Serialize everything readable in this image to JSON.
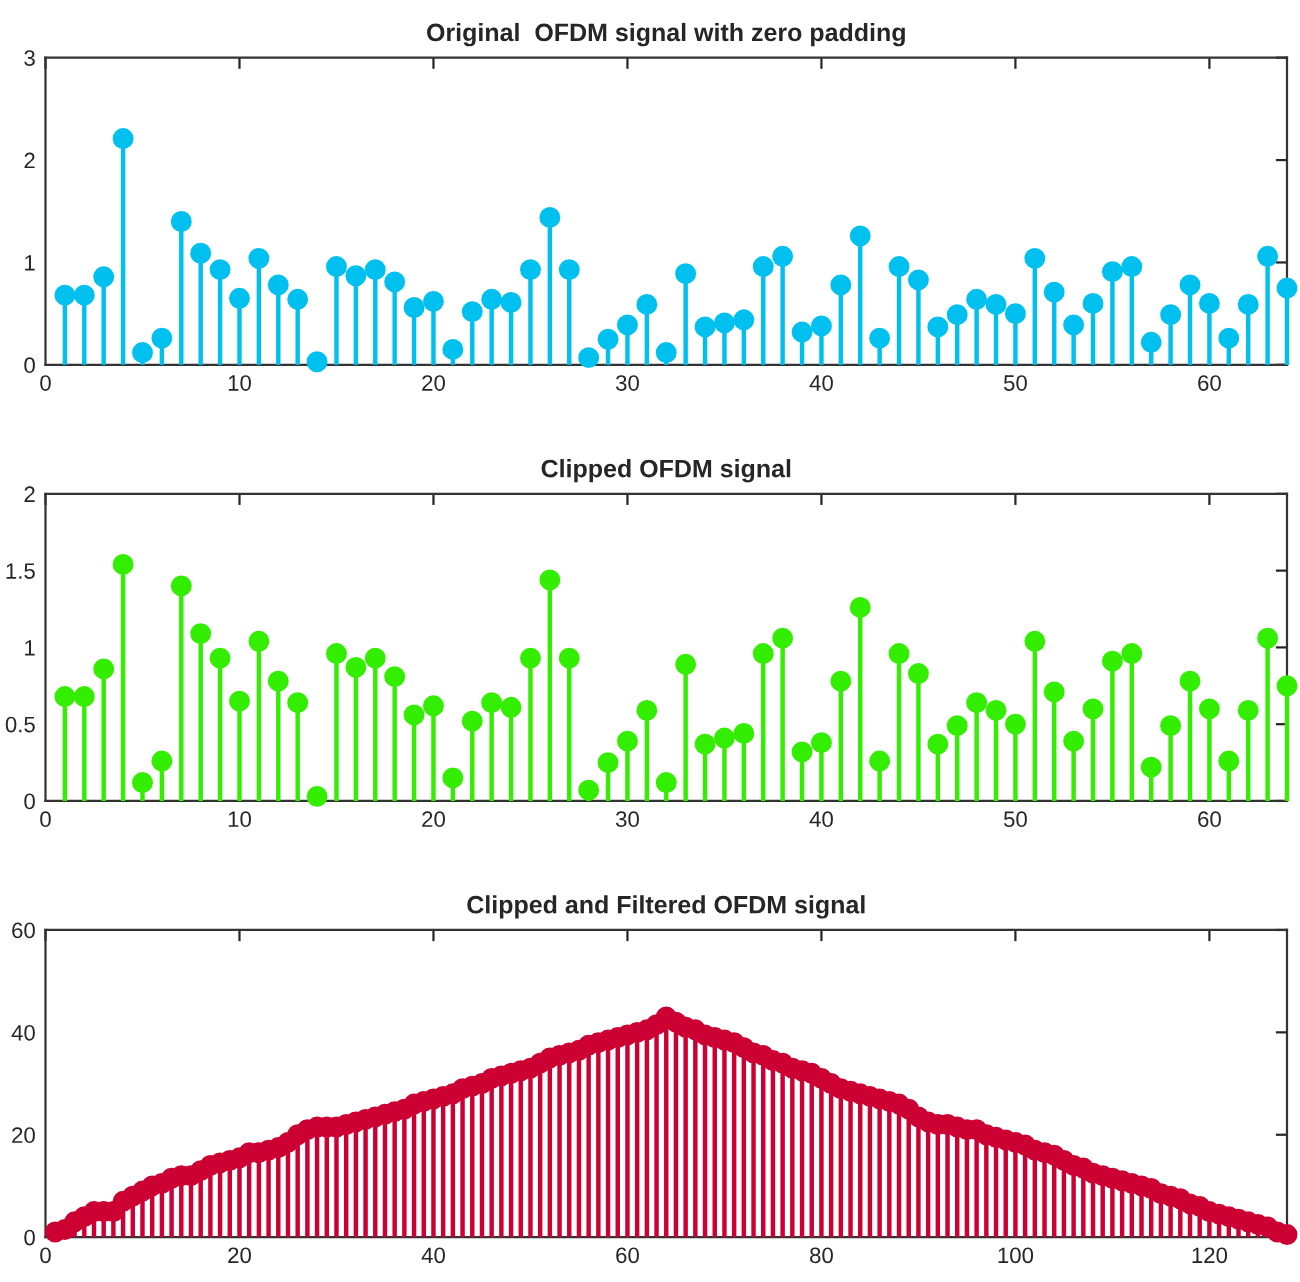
{
  "chart_data": [
    {
      "type": "lollipop",
      "title": "Original  OFDM signal with zero padding",
      "color": "#00c0f0",
      "marker": "circle",
      "xlim": [
        0,
        64
      ],
      "ylim": [
        0,
        3
      ],
      "xticks": [
        0,
        10,
        20,
        30,
        40,
        50,
        60
      ],
      "yticks": [
        0,
        1,
        2,
        3
      ],
      "x": [
        1,
        2,
        3,
        4,
        5,
        6,
        7,
        8,
        9,
        10,
        11,
        12,
        13,
        14,
        15,
        16,
        17,
        18,
        19,
        20,
        21,
        22,
        23,
        24,
        25,
        26,
        27,
        28,
        29,
        30,
        31,
        32,
        33,
        34,
        35,
        36,
        37,
        38,
        39,
        40,
        41,
        42,
        43,
        44,
        45,
        46,
        47,
        48,
        49,
        50,
        51,
        52,
        53,
        54,
        55,
        56,
        57,
        58,
        59,
        60,
        61,
        62,
        63,
        64
      ],
      "values": [
        0.68,
        0.68,
        0.86,
        2.21,
        0.12,
        0.26,
        1.4,
        1.09,
        0.93,
        0.65,
        1.04,
        0.78,
        0.64,
        0.03,
        0.96,
        0.87,
        0.93,
        0.81,
        0.56,
        0.62,
        0.15,
        0.52,
        0.64,
        0.61,
        0.93,
        1.44,
        0.93,
        0.07,
        0.25,
        0.39,
        0.59,
        0.12,
        0.89,
        0.37,
        0.41,
        0.44,
        0.96,
        1.06,
        0.32,
        0.38,
        0.78,
        1.26,
        0.26,
        0.96,
        0.83,
        0.37,
        0.49,
        0.64,
        0.59,
        0.5,
        1.04,
        0.71,
        0.39,
        0.6,
        0.91,
        0.96,
        0.22,
        0.49,
        0.78,
        0.6,
        0.26,
        0.59,
        1.06,
        0.75
      ]
    },
    {
      "type": "lollipop",
      "title": "Clipped OFDM signal",
      "color": "#33ee00",
      "marker": "circle",
      "xlim": [
        0,
        64
      ],
      "ylim": [
        0,
        2
      ],
      "xticks": [
        0,
        10,
        20,
        30,
        40,
        50,
        60
      ],
      "yticks": [
        0,
        0.5,
        1,
        1.5,
        2
      ],
      "x": [
        1,
        2,
        3,
        4,
        5,
        6,
        7,
        8,
        9,
        10,
        11,
        12,
        13,
        14,
        15,
        16,
        17,
        18,
        19,
        20,
        21,
        22,
        23,
        24,
        25,
        26,
        27,
        28,
        29,
        30,
        31,
        32,
        33,
        34,
        35,
        36,
        37,
        38,
        39,
        40,
        41,
        42,
        43,
        44,
        45,
        46,
        47,
        48,
        49,
        50,
        51,
        52,
        53,
        54,
        55,
        56,
        57,
        58,
        59,
        60,
        61,
        62,
        63,
        64
      ],
      "values": [
        0.68,
        0.68,
        0.86,
        1.54,
        0.12,
        0.26,
        1.4,
        1.09,
        0.93,
        0.65,
        1.04,
        0.78,
        0.64,
        0.03,
        0.96,
        0.87,
        0.93,
        0.81,
        0.56,
        0.62,
        0.15,
        0.52,
        0.64,
        0.61,
        0.93,
        1.44,
        0.93,
        0.07,
        0.25,
        0.39,
        0.59,
        0.12,
        0.89,
        0.37,
        0.41,
        0.44,
        0.96,
        1.06,
        0.32,
        0.38,
        0.78,
        1.26,
        0.26,
        0.96,
        0.83,
        0.37,
        0.49,
        0.64,
        0.59,
        0.5,
        1.04,
        0.71,
        0.39,
        0.6,
        0.91,
        0.96,
        0.22,
        0.49,
        0.78,
        0.6,
        0.26,
        0.59,
        1.06,
        0.75
      ]
    },
    {
      "type": "lollipop",
      "title": "Clipped and Filtered OFDM signal",
      "color": "#cc0033",
      "marker": "circle",
      "xlim": [
        0,
        128
      ],
      "ylim": [
        0,
        60
      ],
      "xticks": [
        0,
        20,
        40,
        60,
        80,
        100,
        120
      ],
      "yticks": [
        0,
        20,
        40,
        60
      ],
      "x": [
        1,
        2,
        3,
        4,
        5,
        6,
        7,
        8,
        9,
        10,
        11,
        12,
        13,
        14,
        15,
        16,
        17,
        18,
        19,
        20,
        21,
        22,
        23,
        24,
        25,
        26,
        27,
        28,
        29,
        30,
        31,
        32,
        33,
        34,
        35,
        36,
        37,
        38,
        39,
        40,
        41,
        42,
        43,
        44,
        45,
        46,
        47,
        48,
        49,
        50,
        51,
        52,
        53,
        54,
        55,
        56,
        57,
        58,
        59,
        60,
        61,
        62,
        63,
        64,
        65,
        66,
        67,
        68,
        69,
        70,
        71,
        72,
        73,
        74,
        75,
        76,
        77,
        78,
        79,
        80,
        81,
        82,
        83,
        84,
        85,
        86,
        87,
        88,
        89,
        90,
        91,
        92,
        93,
        94,
        95,
        96,
        97,
        98,
        99,
        100,
        101,
        102,
        103,
        104,
        105,
        106,
        107,
        108,
        109,
        110,
        111,
        112,
        113,
        114,
        115,
        116,
        117,
        118,
        119,
        120,
        121,
        122,
        123,
        124,
        125,
        126,
        127,
        128
      ],
      "values": [
        1,
        1.5,
        3,
        4,
        5,
        5,
        5,
        7,
        8,
        9,
        10,
        10.5,
        11.5,
        12,
        12,
        13,
        14,
        14.5,
        15,
        15.5,
        16.5,
        16.5,
        17,
        17.5,
        18.5,
        20,
        21,
        21.5,
        21.5,
        21.5,
        22,
        22.5,
        23,
        23.5,
        24,
        24.5,
        25,
        26,
        26.5,
        27,
        27.5,
        28,
        29,
        29.5,
        30,
        31,
        31.5,
        32,
        32.5,
        33,
        34,
        35,
        35.5,
        36,
        36.5,
        37.5,
        38,
        38.5,
        39,
        39.5,
        40,
        40.5,
        41.5,
        43,
        42,
        41,
        40.5,
        39.5,
        39,
        38.5,
        38,
        37,
        36,
        35.5,
        34.5,
        34,
        33,
        32.5,
        32,
        31,
        30,
        29,
        28.5,
        28,
        27.5,
        27,
        26.5,
        26,
        25,
        23.5,
        22.5,
        22,
        22,
        21.5,
        21,
        21,
        20,
        19.5,
        19,
        18.5,
        18,
        17,
        16.5,
        16,
        15,
        14,
        13.5,
        12.5,
        12,
        11.5,
        11,
        10.5,
        10,
        9.5,
        8.5,
        8,
        7.5,
        6.5,
        6,
        5,
        4.5,
        4,
        3.5,
        3,
        2.5,
        2,
        1,
        0.5
      ]
    }
  ]
}
